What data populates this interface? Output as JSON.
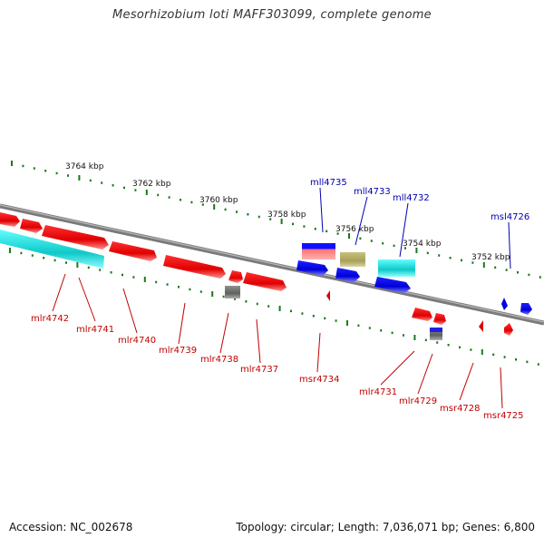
{
  "header": {
    "title": "Mesorhizobium loti MAFF303099, complete genome"
  },
  "footer": {
    "accession": "Accession: NC_002678",
    "summary": "Topology: circular; Length: 7,036,071 bp; Genes: 6,800"
  },
  "colors": {
    "forward_gene": "#e8000a",
    "reverse_gene": "#0000e8",
    "label_red": "#c00000",
    "label_blue": "#0000b0",
    "backbone": "#808080",
    "ticks": "#1a7a1a",
    "cyan": "#10c8c8",
    "khaki": "#b0a860",
    "gray": "#707070"
  },
  "scale": {
    "labels": [
      "3764 kbp",
      "3762 kbp",
      "3760 kbp",
      "3758 kbp",
      "3756 kbp",
      "3754 kbp",
      "3752 kbp"
    ]
  },
  "genes_top": [
    {
      "label": "mll4735",
      "color": "blue"
    },
    {
      "label": "mll4733",
      "color": "blue"
    },
    {
      "label": "mll4732",
      "color": "blue"
    },
    {
      "label": "msl4726",
      "color": "blue"
    }
  ],
  "genes_bottom": [
    {
      "label": "mlr4742",
      "color": "red"
    },
    {
      "label": "mlr4741",
      "color": "red"
    },
    {
      "label": "mlr4740",
      "color": "red"
    },
    {
      "label": "mlr4739",
      "color": "red"
    },
    {
      "label": "mlr4738",
      "color": "red"
    },
    {
      "label": "mlr4737",
      "color": "red"
    },
    {
      "label": "msr4734",
      "color": "red"
    },
    {
      "label": "mlr4731",
      "color": "red"
    },
    {
      "label": "mlr4729",
      "color": "red"
    },
    {
      "label": "msr4728",
      "color": "red"
    },
    {
      "label": "msr4725",
      "color": "red"
    }
  ]
}
